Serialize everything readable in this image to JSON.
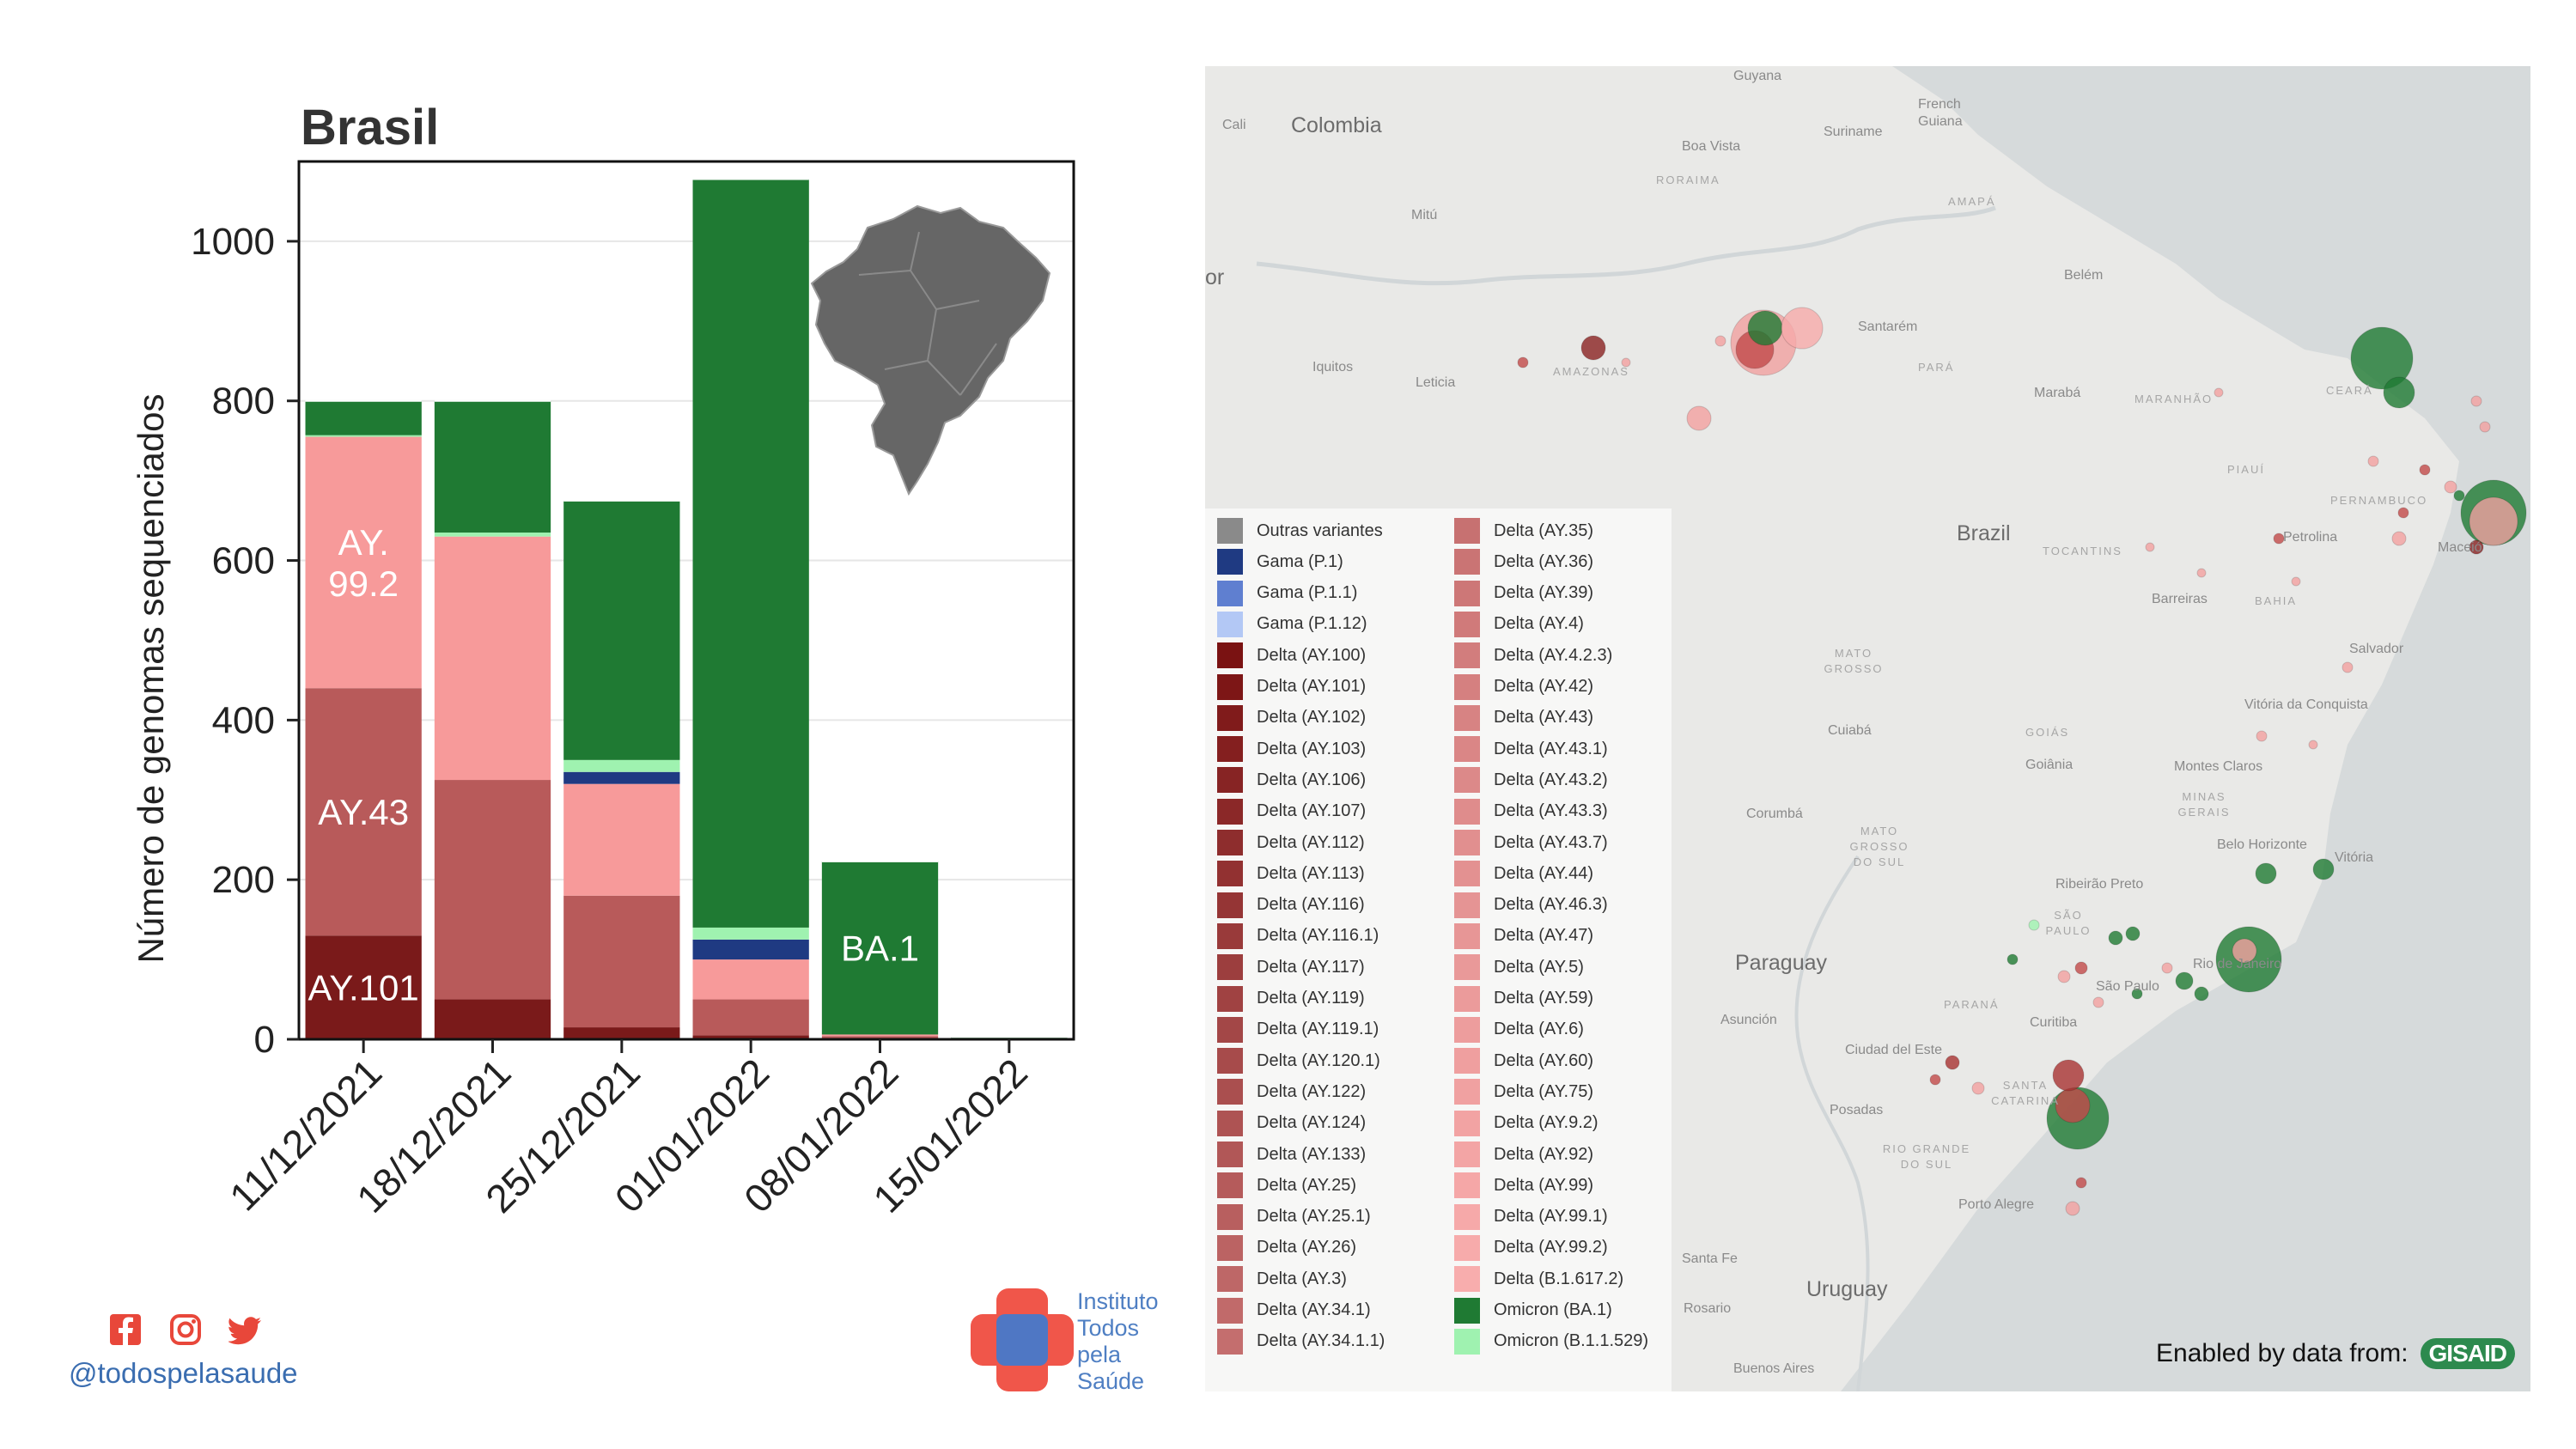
{
  "chart_data": {
    "type": "bar",
    "stacked": true,
    "title": "Brasil",
    "xlabel": "",
    "ylabel": "Número de genomas sequenciados",
    "ylim": [
      0,
      1100
    ],
    "yticks": [
      0,
      200,
      400,
      600,
      800,
      1000
    ],
    "grid": true,
    "categories": [
      "11/12/2021",
      "18/12/2021",
      "25/12/2021",
      "01/01/2022",
      "08/01/2022",
      "15/01/2022"
    ],
    "series": [
      {
        "name": "Delta (AY.101)",
        "color": "#7a1a1a",
        "values": [
          130,
          50,
          15,
          5,
          0,
          0
        ]
      },
      {
        "name": "Delta (AY.43)",
        "color": "#b85a5a",
        "values": [
          310,
          275,
          165,
          45,
          4,
          1
        ]
      },
      {
        "name": "Delta (AY.99.2)",
        "color": "#f79a9a",
        "values": [
          315,
          305,
          140,
          50,
          2,
          0
        ]
      },
      {
        "name": "Gama (P.1)",
        "color": "#1f3a82",
        "values": [
          0,
          0,
          15,
          25,
          0,
          0
        ]
      },
      {
        "name": "Omicron (B.1.1.529)",
        "color": "#9ff2b0",
        "values": [
          2,
          5,
          15,
          15,
          0,
          0
        ]
      },
      {
        "name": "Omicron (BA.1)",
        "color": "#1f7a33",
        "values": [
          43,
          165,
          325,
          938,
          217,
          2
        ]
      }
    ],
    "bar_labels": [
      {
        "text": "AY.\n99.2",
        "bar": 0,
        "series": 2
      },
      {
        "text": "AY.43",
        "bar": 0,
        "series": 1
      },
      {
        "text": "AY.101",
        "bar": 0,
        "series": 0
      },
      {
        "text": "BA.1",
        "bar": 4,
        "series": 5
      }
    ]
  },
  "map": {
    "labels": {
      "guyana": "Guyana",
      "french_guiana": "French Guiana",
      "cali": "Cali",
      "colombia": "Colombia",
      "suriname": "Suriname",
      "boa_vista": "Boa Vista",
      "roraima": "RORAIMA",
      "amapa": "AMAPÁ",
      "mitu": "Mitú",
      "or": "or",
      "belem": "Belém",
      "santarem": "Santarém",
      "iquitos": "Iquitos",
      "leticia": "Leticia",
      "amazonas": "AMAZONAS",
      "para": "PARÁ",
      "maraba": "Marabá",
      "maranhao": "MARANHÃO",
      "ceara": "CEARÁ",
      "piaui": "PIAUÍ",
      "brazil": "Brazil",
      "pernambuco": "PERNAMBUCO",
      "tocantins": "TOCANTINS",
      "petrolina": "Petrolina",
      "maceio": "Maceió",
      "barreiras": "Barreiras",
      "bahia": "BAHIA",
      "salvador": "Salvador",
      "mato_grosso": "MATO GROSSO",
      "vitoria_conquista": "Vitória da Conquista",
      "cuiaba": "Cuiabá",
      "goias": "GOIÁS",
      "goiania": "Goiânia",
      "montes_claros": "Montes Claros",
      "minas_gerais": "MINAS GERAIS",
      "corumba": "Corumbá",
      "mato_grosso_sul": "MATO GROSSO DO SUL",
      "belo_horizonte": "Belo Horizonte",
      "vitoria": "Vitória",
      "ribeirao_preto": "Ribeirão Preto",
      "sao_paulo_state": "SÃO PAULO",
      "paraguay": "Paraguay",
      "rio_de_janeiro": "Rio de Janeiro",
      "sao_paulo": "São Paulo",
      "parana": "PARANÁ",
      "asuncion": "Asunción",
      "curitiba": "Curitiba",
      "ciudad_del_este": "Ciudad del Este",
      "santa_catarina": "SANTA CATARINA",
      "posadas": "Posadas",
      "rio_grande_sul": "RIO GRANDE DO SUL",
      "porto_alegre": "Porto Alegre",
      "santa_fe": "Santa Fe",
      "rosario": "Rosario",
      "uruguay": "Uruguay",
      "buenos_aires": "Buenos Aires"
    },
    "legend": [
      {
        "label": "Outras variantes",
        "color": "#8a8a8a"
      },
      {
        "label": "Gama (P.1)",
        "color": "#1f3a82"
      },
      {
        "label": "Gama (P.1.1)",
        "color": "#5f7fd0"
      },
      {
        "label": "Gama (P.1.12)",
        "color": "#b3c8f5"
      },
      {
        "label": "Delta (AY.100)",
        "color": "#7a1212"
      },
      {
        "label": "Delta (AY.101)",
        "color": "#7d1616"
      },
      {
        "label": "Delta (AY.102)",
        "color": "#801b1b"
      },
      {
        "label": "Delta (AY.103)",
        "color": "#841f1f"
      },
      {
        "label": "Delta (AY.106)",
        "color": "#872424"
      },
      {
        "label": "Delta (AY.107)",
        "color": "#8b2828"
      },
      {
        "label": "Delta (AY.112)",
        "color": "#8e2d2d"
      },
      {
        "label": "Delta (AY.113)",
        "color": "#923131"
      },
      {
        "label": "Delta (AY.116)",
        "color": "#953535"
      },
      {
        "label": "Delta (AY.116.1)",
        "color": "#993a3a"
      },
      {
        "label": "Delta (AY.117)",
        "color": "#9c3e3e"
      },
      {
        "label": "Delta (AY.119)",
        "color": "#a04242"
      },
      {
        "label": "Delta (AY.119.1)",
        "color": "#a34747"
      },
      {
        "label": "Delta (AY.120.1)",
        "color": "#a74b4b"
      },
      {
        "label": "Delta (AY.122)",
        "color": "#aa4f4f"
      },
      {
        "label": "Delta (AY.124)",
        "color": "#ae5353"
      },
      {
        "label": "Delta (AY.133)",
        "color": "#b15757"
      },
      {
        "label": "Delta (AY.25)",
        "color": "#b55b5b"
      },
      {
        "label": "Delta (AY.25.1)",
        "color": "#b85f5f"
      },
      {
        "label": "Delta (AY.26)",
        "color": "#bb6363"
      },
      {
        "label": "Delta (AY.3)",
        "color": "#be6767"
      },
      {
        "label": "Delta (AY.34.1)",
        "color": "#c16a6a"
      },
      {
        "label": "Delta (AY.34.1.1)",
        "color": "#c46e6e"
      },
      {
        "label": "Delta (AY.35)",
        "color": "#c77171"
      },
      {
        "label": "Delta (AY.36)",
        "color": "#ca7474"
      },
      {
        "label": "Delta (AY.39)",
        "color": "#cd7777"
      },
      {
        "label": "Delta (AY.4)",
        "color": "#d07a7a"
      },
      {
        "label": "Delta (AY.4.2.3)",
        "color": "#d27d7d"
      },
      {
        "label": "Delta (AY.42)",
        "color": "#d58080"
      },
      {
        "label": "Delta (AY.43)",
        "color": "#d78383"
      },
      {
        "label": "Delta (AY.43.1)",
        "color": "#da8686"
      },
      {
        "label": "Delta (AY.43.2)",
        "color": "#dc8989"
      },
      {
        "label": "Delta (AY.43.3)",
        "color": "#df8c8c"
      },
      {
        "label": "Delta (AY.43.7)",
        "color": "#e18f8f"
      },
      {
        "label": "Delta (AY.44)",
        "color": "#e39191"
      },
      {
        "label": "Delta (AY.46.3)",
        "color": "#e59494"
      },
      {
        "label": "Delta (AY.47)",
        "color": "#e79696"
      },
      {
        "label": "Delta (AY.5)",
        "color": "#e99999"
      },
      {
        "label": "Delta (AY.59)",
        "color": "#eb9b9b"
      },
      {
        "label": "Delta (AY.6)",
        "color": "#ed9d9d"
      },
      {
        "label": "Delta (AY.60)",
        "color": "#ef9f9f"
      },
      {
        "label": "Delta (AY.75)",
        "color": "#f0a1a1"
      },
      {
        "label": "Delta (AY.9.2)",
        "color": "#f2a3a3"
      },
      {
        "label": "Delta (AY.92)",
        "color": "#f3a5a5"
      },
      {
        "label": "Delta (AY.99)",
        "color": "#f5a7a7"
      },
      {
        "label": "Delta (AY.99.1)",
        "color": "#f6a9a9"
      },
      {
        "label": "Delta (AY.99.2)",
        "color": "#f7abab"
      },
      {
        "label": "Delta (B.1.617.2)",
        "color": "#f8adad"
      },
      {
        "label": "Omicron (BA.1)",
        "color": "#1f7a33"
      },
      {
        "label": "Omicron (B.1.1.529)",
        "color": "#9ff2b0"
      }
    ],
    "credit_text": "Enabled by data from:",
    "credit_logo": "GISAID"
  },
  "footer": {
    "handle": "@todospelasaude",
    "institute_lines": [
      "Instituto",
      "Todos",
      "pela",
      "Saúde"
    ],
    "social_icons": [
      "facebook-icon",
      "instagram-icon",
      "twitter-icon"
    ]
  }
}
